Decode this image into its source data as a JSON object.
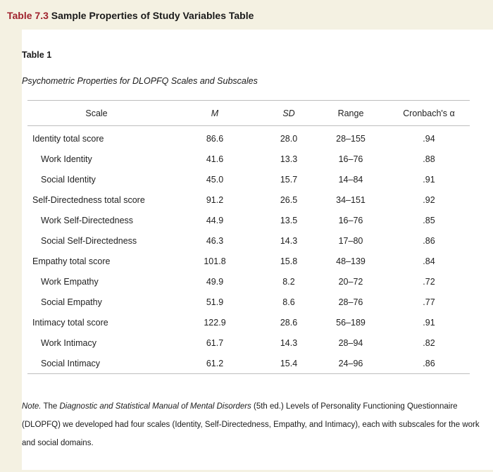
{
  "caption": {
    "number": "Table 7.3",
    "text": "Sample Properties of Study Variables Table"
  },
  "table": {
    "label": "Table 1",
    "title": "Psychometric Properties for DLOPFQ Scales and Subscales",
    "columns": [
      "Scale",
      "M",
      "SD",
      "Range",
      "Cronbach's α"
    ],
    "rows": [
      {
        "scale": "Identity total score",
        "sub": false,
        "m": "86.6",
        "sd": "28.0",
        "range": "28–155",
        "alpha": ".94"
      },
      {
        "scale": "Work Identity",
        "sub": true,
        "m": "41.6",
        "sd": "13.3",
        "range": "16–76",
        "alpha": ".88"
      },
      {
        "scale": "Social Identity",
        "sub": true,
        "m": "45.0",
        "sd": "15.7",
        "range": "14–84",
        "alpha": ".91"
      },
      {
        "scale": "Self-Directedness total score",
        "sub": false,
        "m": "91.2",
        "sd": "26.5",
        "range": "34–151",
        "alpha": ".92"
      },
      {
        "scale": "Work Self-Directedness",
        "sub": true,
        "m": "44.9",
        "sd": "13.5",
        "range": "16–76",
        "alpha": ".85"
      },
      {
        "scale": "Social Self-Directedness",
        "sub": true,
        "m": "46.3",
        "sd": "14.3",
        "range": "17–80",
        "alpha": ".86"
      },
      {
        "scale": "Empathy total score",
        "sub": false,
        "m": "101.8",
        "sd": "15.8",
        "range": "48–139",
        "alpha": ".84"
      },
      {
        "scale": "Work Empathy",
        "sub": true,
        "m": "49.9",
        "sd": "8.2",
        "range": "20–72",
        "alpha": ".72"
      },
      {
        "scale": "Social Empathy",
        "sub": true,
        "m": "51.9",
        "sd": "8.6",
        "range": "28–76",
        "alpha": ".77"
      },
      {
        "scale": "Intimacy total score",
        "sub": false,
        "m": "122.9",
        "sd": "28.6",
        "range": "56–189",
        "alpha": ".91"
      },
      {
        "scale": "Work Intimacy",
        "sub": true,
        "m": "61.7",
        "sd": "14.3",
        "range": "28–94",
        "alpha": ".82"
      },
      {
        "scale": "Social Intimacy",
        "sub": true,
        "m": "61.2",
        "sd": "15.4",
        "range": "24–96",
        "alpha": ".86"
      }
    ]
  },
  "note": {
    "label": "Note.",
    "text_1": " The ",
    "manual": "Diagnostic and Statistical Manual of Mental Disorders",
    "text_2": " (5th ed.) Levels of Personality Functioning Questionnaire (DLOPFQ) we developed had four scales (Identity, Self-Directedness, Empathy, and Intimacy), each with subscales for the work and social domains."
  },
  "colors": {
    "background": "#f4f1e2",
    "caption_number": "#a0232e",
    "panel": "#ffffff",
    "rule": "#bdbdbd"
  }
}
